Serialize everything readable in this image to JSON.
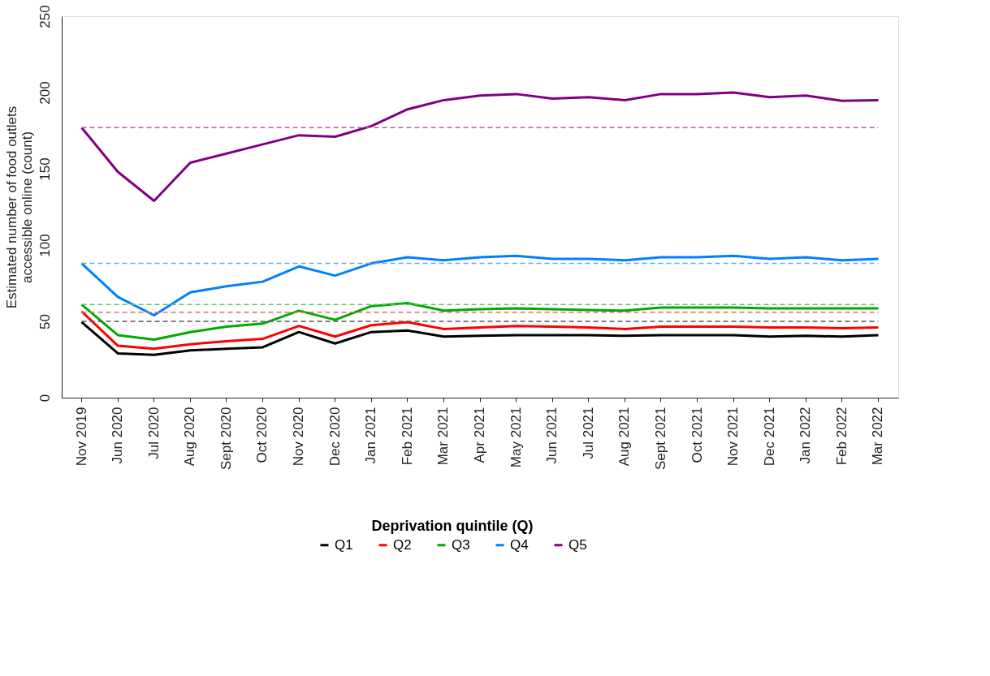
{
  "chart_data": {
    "type": "line",
    "ylabel": "Estimated number of food outlets\naccessible online (count)",
    "legend_title": "Deprivation quintile (Q)",
    "categories": [
      "Nov 2019",
      "Jun 2020",
      "Jul 2020",
      "Aug 2020",
      "Sept 2020",
      "Oct 2020",
      "Nov 2020",
      "Dec 2020",
      "Jan 2021",
      "Feb 2021",
      "Mar 2021",
      "Apr 2021",
      "May 2021",
      "Jun 2021",
      "Jul 2021",
      "Aug 2021",
      "Sept 2021",
      "Oct 2021",
      "Nov 2021",
      "Dec 2021",
      "Jan 2022",
      "Feb 2022",
      "Mar 2022"
    ],
    "series": [
      {
        "name": "Q1",
        "color": "#000000",
        "values": [
          49.5,
          29,
          28,
          31,
          32,
          33,
          43,
          35.5,
          43,
          44,
          40,
          40.5,
          41,
          41,
          41,
          40.5,
          41,
          41,
          41,
          40,
          40.5,
          40,
          41
        ]
      },
      {
        "name": "Q2",
        "color": "#ff0000",
        "values": [
          56.5,
          34,
          32,
          35,
          37,
          38.5,
          47,
          40,
          47.5,
          49.5,
          45,
          46,
          47,
          46.5,
          46,
          45,
          46.5,
          46.5,
          46.5,
          46,
          46,
          45.5,
          46
        ]
      },
      {
        "name": "Q3",
        "color": "#00aa00",
        "values": [
          61,
          41,
          38,
          43,
          46.5,
          48.5,
          57,
          51,
          60,
          62,
          57,
          58,
          58.5,
          58,
          57.5,
          57,
          59,
          59,
          59,
          58.5,
          58.5,
          58.5,
          58.5
        ]
      },
      {
        "name": "Q4",
        "color": "#0080ff",
        "values": [
          88,
          66,
          54,
          69,
          73,
          76,
          86,
          80,
          88,
          92,
          90,
          92,
          93,
          91,
          91,
          90,
          92,
          92,
          93,
          91,
          92,
          90,
          91
        ]
      },
      {
        "name": "Q5",
        "color": "#800080",
        "values": [
          177,
          148,
          129,
          154,
          160,
          166,
          172,
          171,
          178,
          189,
          195,
          198,
          199,
          196,
          197,
          195,
          199,
          199,
          200,
          197,
          198,
          194.5,
          195
        ]
      }
    ],
    "ref_lines": [
      {
        "axis": "y",
        "value": 50,
        "label": null,
        "color": "#555555",
        "line_style": "dashed"
      },
      {
        "axis": "y",
        "value": 56,
        "label": null,
        "color": "#ff6060",
        "line_style": "dashed"
      },
      {
        "axis": "y",
        "value": 61,
        "label": null,
        "color": "#60c060",
        "line_style": "dashed"
      },
      {
        "axis": "y",
        "value": 88,
        "label": null,
        "color": "#60a8ff",
        "line_style": "dashed"
      },
      {
        "axis": "y",
        "value": 177,
        "label": null,
        "color": "#b060b0",
        "line_style": "dashed"
      }
    ],
    "ylim": [
      0,
      250
    ],
    "yticks": [
      0,
      50,
      100,
      150,
      200,
      250
    ],
    "grid": false,
    "legend": "bottom",
    "marker": "none",
    "line_style": "solid"
  }
}
